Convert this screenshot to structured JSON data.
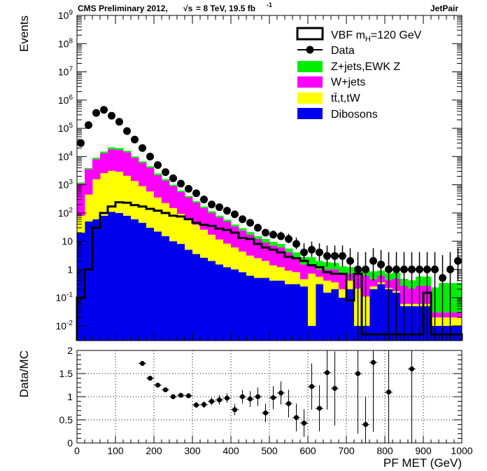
{
  "header": {
    "left_text": "CMS Preliminary 2012,",
    "sqrt_s": "√s",
    "energy_text": "= 8 TeV, 19.5 fb",
    "lumi_exp": "-1",
    "right_text": "JetPair"
  },
  "chart_data": [
    {
      "type": "bar",
      "subtype": "stacked-histogram",
      "title": "",
      "xlabel": "PF MET (GeV)",
      "ylabel": "Events",
      "xlim": [
        0,
        1000
      ],
      "ylim": [
        0.003,
        1000000000
      ],
      "yscale": "log",
      "bin_width": 20,
      "x_ticks": [
        0,
        100,
        200,
        300,
        400,
        500,
        600,
        700,
        800,
        900,
        1000
      ],
      "y_tick_labels": [
        "10⁻²",
        "10⁻¹",
        "1",
        "10",
        "10²",
        "10³",
        "10⁴",
        "10⁵",
        "10⁶",
        "10⁷",
        "10⁸",
        "10⁹"
      ],
      "legend_position": "top-right",
      "legend": [
        {
          "label": "VBF m_H=120 GeV",
          "text_main": "VBF m",
          "text_sub": "H",
          "text_tail": "=120 GeV",
          "style": "line-box"
        },
        {
          "label": "Data",
          "style": "marker"
        },
        {
          "label": "Z+jets,EWK Z",
          "style": "fill",
          "color": "#00ee00"
        },
        {
          "label": "W+jets",
          "style": "fill",
          "color": "#ff00ff"
        },
        {
          "label": "tt̄,t,tW",
          "style": "fill",
          "color": "#ffff00"
        },
        {
          "label": "Dibosons",
          "style": "fill",
          "color": "#0000ee"
        }
      ],
      "colors": {
        "dibosons": "#0000ee",
        "top": "#ffff00",
        "wjets": "#ff00ff",
        "zjets": "#00ee00"
      },
      "x": [
        10,
        30,
        50,
        70,
        90,
        110,
        130,
        150,
        170,
        190,
        210,
        230,
        250,
        270,
        290,
        310,
        330,
        350,
        370,
        390,
        410,
        430,
        450,
        470,
        490,
        510,
        530,
        550,
        570,
        590,
        610,
        630,
        650,
        670,
        690,
        710,
        730,
        750,
        770,
        790,
        810,
        830,
        850,
        870,
        890,
        910,
        930,
        950,
        970,
        990
      ],
      "series": [
        {
          "name": "Dibosons",
          "values": [
            20,
            50,
            60,
            80,
            110,
            100,
            80,
            60,
            45,
            30,
            22,
            15,
            10,
            8,
            5,
            3.5,
            2.6,
            2,
            1.5,
            1.2,
            1,
            0.8,
            0.6,
            0.5,
            0.5,
            0.4,
            0.4,
            0.3,
            0.3,
            0.25,
            0.01,
            0.3,
            0.15,
            0.2,
            0.1,
            0.2,
            0.01,
            0.01,
            0.2,
            0.3,
            0.2,
            0.15,
            0.05,
            0.05,
            0.05,
            0.05,
            0.01,
            0.01,
            0.01,
            0.01
          ]
        },
        {
          "name": "tt̄,t,tW",
          "values": [
            60,
            400,
            1500,
            2500,
            3000,
            2800,
            2000,
            1300,
            850,
            550,
            330,
            210,
            140,
            85,
            55,
            35,
            23,
            15,
            10,
            7,
            5,
            3.5,
            2.5,
            2,
            1.5,
            1,
            0.8,
            0.6,
            0.5,
            0.2,
            0.7,
            0.25,
            0.25,
            0.15,
            0.1,
            0.2,
            0.2,
            0.1,
            0.05,
            0.05,
            0.02,
            0.02,
            0.01,
            0.01,
            0.01,
            0.01,
            0.01,
            0.01,
            0.01,
            0.01
          ]
        },
        {
          "name": "W+jets",
          "values": [
            1020,
            3150,
            6440,
            10420,
            14890,
            14100,
            11920,
            7640,
            5105,
            3420,
            1848,
            1175,
            750,
            457,
            300,
            197,
            124,
            83,
            58.5,
            41.8,
            27,
            19.7,
            13.9,
            9.5,
            7,
            5.6,
            4.8,
            3.1,
            1.7,
            1.05,
            0.8,
            0.45,
            0.6,
            0.65,
            0.5,
            0.3,
            0.5,
            0.5,
            0.2,
            0.25,
            0.2,
            0.3,
            0.2,
            0.15,
            0.2,
            0.2,
            0.01,
            0.01,
            0.01,
            0.01
          ]
        },
        {
          "name": "Z+jets,EWK Z",
          "values": [
            100,
            300,
            1000,
            2000,
            3000,
            3000,
            2000,
            1000,
            700,
            500,
            300,
            200,
            100,
            70,
            40,
            25,
            20,
            15,
            10,
            8,
            6,
            5,
            4,
            3,
            3,
            2.5,
            2,
            1.5,
            1.5,
            1.2,
            1.2,
            1,
            0.8,
            0.7,
            0.6,
            0.5,
            0.5,
            0.4,
            0.4,
            0.3,
            0.3,
            0.3,
            0.2,
            0.2,
            0.3,
            0.3,
            0.2,
            0.3,
            0.3,
            0.3
          ]
        }
      ],
      "signal": {
        "name": "VBF m_H=120 GeV",
        "values": [
          0.1,
          1,
          30,
          100,
          170,
          240,
          230,
          190,
          170,
          140,
          120,
          100,
          80,
          75,
          60,
          45,
          38,
          35,
          28,
          25,
          20,
          13,
          12,
          8,
          6,
          5,
          4,
          2.8,
          2.5,
          2,
          1.4,
          1.2,
          0.8,
          0.7,
          0.7,
          0.08,
          0.7,
          0.005,
          0.005,
          0.005,
          0.005,
          0.005,
          0.005,
          0.005,
          0.005,
          0.15,
          0.005,
          0.005,
          0.005,
          0.005
        ]
      },
      "data": {
        "name": "Data",
        "values": [
          30000,
          130000,
          350000,
          450000,
          280000,
          170000,
          80000,
          40000,
          20000,
          10000,
          5000,
          2800,
          1700,
          1100,
          720,
          500,
          300,
          200,
          160,
          120,
          90,
          60,
          45,
          30,
          20,
          17,
          15,
          12,
          8,
          4,
          5,
          4,
          3,
          3,
          3,
          2,
          1,
          1,
          2,
          1.5,
          1,
          1,
          1,
          1,
          1,
          1,
          1,
          0.5,
          1,
          2
        ],
        "errors_low": [
          0.9,
          0.9,
          0.9,
          0.9,
          0.9,
          0.9,
          0.9,
          0.9,
          0.9,
          0.9,
          0.9,
          0.9,
          0.9,
          0.9,
          0.9,
          0.9,
          0.9,
          0.9,
          0.9,
          0.9,
          0.9,
          0.9,
          0.9,
          0.9,
          0.9,
          0.9,
          0.9,
          0.9,
          0.9,
          0.9,
          0.9,
          0.9,
          0.9,
          0.9,
          0.9,
          0.9,
          0.9,
          0.9,
          0.9,
          0.9,
          0.9,
          0.9,
          0.9,
          0.9,
          0.9,
          0.9,
          0.9,
          0.9,
          0.9,
          0.9
        ]
      },
      "ratio": {
        "ylabel": "Data/MC",
        "ylim": [
          0,
          2
        ],
        "y_ticks": [
          0,
          0.5,
          1,
          1.5,
          2
        ],
        "points": [
          {
            "x": 170,
            "y": 1.72,
            "err": 0.02
          },
          {
            "x": 190,
            "y": 1.4,
            "err": 0.02
          },
          {
            "x": 210,
            "y": 1.25,
            "err": 0.02
          },
          {
            "x": 230,
            "y": 1.15,
            "err": 0.03
          },
          {
            "x": 250,
            "y": 1.0,
            "err": 0.03
          },
          {
            "x": 270,
            "y": 1.03,
            "err": 0.04
          },
          {
            "x": 290,
            "y": 1.02,
            "err": 0.05
          },
          {
            "x": 310,
            "y": 0.82,
            "err": 0.06
          },
          {
            "x": 330,
            "y": 0.83,
            "err": 0.07
          },
          {
            "x": 350,
            "y": 0.9,
            "err": 0.08
          },
          {
            "x": 370,
            "y": 0.93,
            "err": 0.1
          },
          {
            "x": 390,
            "y": 0.97,
            "err": 0.1
          },
          {
            "x": 410,
            "y": 0.72,
            "err": 0.12
          },
          {
            "x": 430,
            "y": 1.0,
            "err": 0.15
          },
          {
            "x": 450,
            "y": 0.95,
            "err": 0.17
          },
          {
            "x": 470,
            "y": 1.0,
            "err": 0.2
          },
          {
            "x": 490,
            "y": 0.65,
            "err": 0.2
          },
          {
            "x": 510,
            "y": 0.98,
            "err": 0.25
          },
          {
            "x": 530,
            "y": 1.08,
            "err": 0.25
          },
          {
            "x": 550,
            "y": 0.85,
            "err": 0.3
          },
          {
            "x": 570,
            "y": 0.55,
            "err": 0.3
          },
          {
            "x": 590,
            "y": 0.43,
            "err": 0.3
          },
          {
            "x": 610,
            "y": 1.22,
            "err": 0.5
          },
          {
            "x": 630,
            "y": 0.75,
            "err": 0.5
          },
          {
            "x": 650,
            "y": 1.52,
            "err": 0.8
          },
          {
            "x": 670,
            "y": 1.18,
            "err": 0.8
          },
          {
            "x": 730,
            "y": 1.5,
            "err": 1.3
          },
          {
            "x": 750,
            "y": 0.4,
            "err": 0.6
          },
          {
            "x": 770,
            "y": 1.74,
            "err": 1.5
          },
          {
            "x": 810,
            "y": 1.1,
            "err": 1.2
          },
          {
            "x": 870,
            "y": 1.6,
            "err": 1.6
          }
        ]
      }
    }
  ]
}
